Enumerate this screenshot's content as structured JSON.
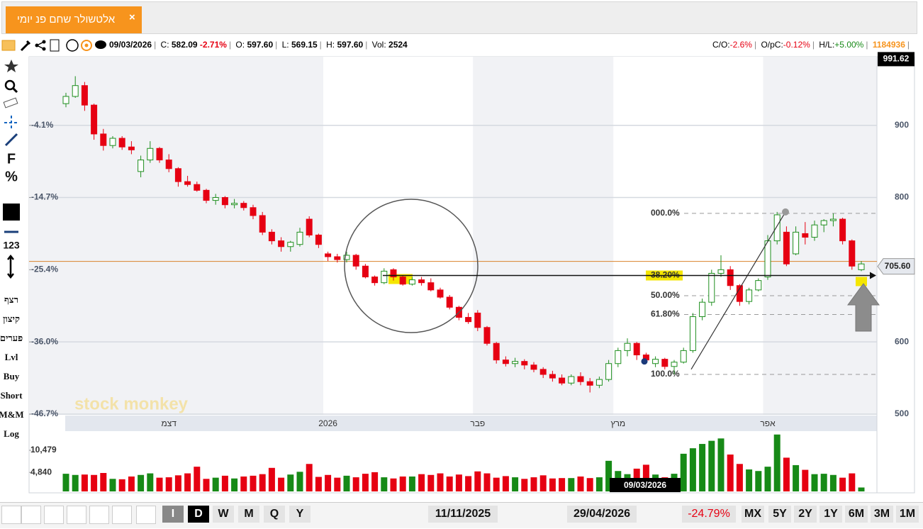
{
  "tab": {
    "title": "אלטשולר שחם פנ יומי",
    "close": "×"
  },
  "toolbar": {
    "date": "09/03/2026",
    "c_label": "C:",
    "c": "582.09",
    "c_change": "-2.71%",
    "o_label": "O:",
    "o": "597.60",
    "l_label": "L:",
    "l": "569.15",
    "h_label": "H:",
    "h": "597.60",
    "vol_label": "Vol:",
    "vol": "2524",
    "co_label": "C/O:",
    "co": "-2.6%",
    "opc_label": "O/pC:",
    "opc": "-0.12%",
    "hl_label": "H/L:",
    "hl": "+5.00%",
    "id": "1184936"
  },
  "left_tools": [
    "F",
    "%",
    "123",
    "רצף",
    "קיצון",
    "פערים",
    "Lvl",
    "Buy",
    "Short",
    "M&M",
    "Log"
  ],
  "bottom_bar": {
    "intervals": [
      "I",
      "D",
      "W",
      "M",
      "Q",
      "Y"
    ],
    "from": "11/11/2025",
    "to": "29/04/2026",
    "change": "-24.79%",
    "ranges": [
      "MX",
      "5Y",
      "2Y",
      "1Y",
      "6M",
      "3M",
      "1M"
    ]
  },
  "chart_data": {
    "type": "candlestick",
    "watermark": "stock monkey",
    "crosshair_date": "09/03/2026",
    "categories": [
      null,
      null,
      null,
      null,
      null,
      null,
      null,
      null,
      null,
      null,
      null,
      "דצמ",
      null,
      null,
      null,
      null,
      null,
      null,
      null,
      null,
      null,
      null,
      null,
      null,
      null,
      null,
      null,
      null,
      "2026",
      null,
      null,
      null,
      null,
      null,
      null,
      null,
      null,
      null,
      null,
      null,
      null,
      null,
      null,
      null,
      "פבר",
      null,
      null,
      null,
      null,
      null,
      null,
      null,
      null,
      null,
      null,
      null,
      null,
      null,
      null,
      "מרץ",
      null,
      null,
      null,
      null,
      null,
      null,
      null,
      null,
      null,
      null,
      null,
      null,
      null,
      null,
      null,
      "אפר",
      null,
      null,
      null,
      null,
      null,
      null,
      null,
      null,
      null,
      null
    ],
    "open": [
      930,
      940,
      955,
      928,
      888,
      872,
      882,
      870,
      836,
      852,
      868,
      852,
      840,
      822,
      818,
      810,
      796,
      800,
      790,
      792,
      786,
      775,
      752,
      740,
      732,
      735,
      770,
      748,
      722,
      718,
      714,
      720,
      705,
      690,
      682,
      700,
      690,
      680,
      686,
      682,
      672,
      662,
      648,
      634,
      640,
      620,
      598,
      575,
      570,
      573,
      568,
      562,
      555,
      550,
      543,
      552,
      545,
      540,
      548,
      570,
      588,
      598,
      582,
      570,
      576,
      566,
      572,
      588,
      635,
      655,
      695,
      700,
      678,
      656,
      672,
      690,
      740,
      752,
      722,
      750,
      745,
      762,
      768,
      770,
      740,
      700
    ],
    "high": [
      945,
      968,
      960,
      930,
      895,
      885,
      885,
      878,
      858,
      878,
      870,
      860,
      842,
      830,
      822,
      812,
      805,
      802,
      798,
      795,
      790,
      780,
      756,
      745,
      740,
      758,
      774,
      750,
      725,
      722,
      725,
      722,
      708,
      692,
      702,
      702,
      692,
      690,
      690,
      688,
      675,
      665,
      650,
      640,
      644,
      622,
      600,
      580,
      578,
      576,
      572,
      565,
      560,
      555,
      555,
      558,
      550,
      552,
      575,
      592,
      605,
      600,
      585,
      580,
      578,
      575,
      592,
      640,
      660,
      700,
      720,
      705,
      680,
      675,
      688,
      748,
      780,
      760,
      760,
      766,
      768,
      770,
      778,
      772,
      742,
      712
    ],
    "low": [
      925,
      938,
      920,
      880,
      865,
      868,
      866,
      860,
      828,
      848,
      848,
      835,
      815,
      815,
      808,
      792,
      790,
      785,
      785,
      782,
      770,
      748,
      735,
      725,
      725,
      732,
      745,
      730,
      712,
      710,
      710,
      700,
      688,
      678,
      680,
      685,
      678,
      678,
      678,
      670,
      660,
      645,
      630,
      625,
      615,
      595,
      570,
      566,
      565,
      562,
      558,
      550,
      545,
      540,
      540,
      540,
      530,
      536,
      545,
      565,
      580,
      575,
      570,
      565,
      562,
      555,
      570,
      585,
      630,
      650,
      690,
      672,
      650,
      652,
      670,
      686,
      735,
      705,
      720,
      735,
      740,
      752,
      760,
      735,
      700,
      698
    ],
    "close": [
      940,
      955,
      928,
      888,
      872,
      882,
      870,
      866,
      852,
      868,
      852,
      840,
      822,
      818,
      810,
      796,
      800,
      790,
      792,
      786,
      775,
      752,
      740,
      732,
      738,
      752,
      748,
      735,
      718,
      714,
      720,
      705,
      690,
      682,
      698,
      690,
      680,
      686,
      682,
      672,
      662,
      648,
      634,
      628,
      620,
      598,
      575,
      570,
      573,
      568,
      562,
      555,
      550,
      543,
      552,
      545,
      540,
      548,
      570,
      588,
      598,
      582,
      575,
      576,
      566,
      572,
      588,
      635,
      655,
      695,
      700,
      678,
      656,
      672,
      685,
      740,
      776,
      708,
      752,
      745,
      762,
      768,
      770,
      740,
      705,
      708
    ],
    "volume": [
      4500,
      4200,
      4300,
      4200,
      4700,
      3200,
      3100,
      3800,
      4200,
      4600,
      3500,
      3600,
      4100,
      4600,
      6300,
      3200,
      3500,
      4000,
      3300,
      3800,
      4000,
      4400,
      6000,
      3500,
      4300,
      5000,
      7000,
      3700,
      4200,
      3500,
      4000,
      3600,
      4500,
      4900,
      3600,
      3300,
      3800,
      3800,
      4400,
      4200,
      4600,
      3800,
      4300,
      3900,
      5100,
      4600,
      3500,
      3900,
      3600,
      3200,
      3600,
      4100,
      3300,
      3400,
      3400,
      3800,
      3400,
      3600,
      7800,
      5200,
      4400,
      5800,
      6800,
      4300,
      3600,
      4500,
      9600,
      11000,
      12100,
      12900,
      13500,
      9400,
      7000,
      5600,
      5200,
      6300,
      14500,
      8600,
      6700,
      5500,
      4400,
      4500,
      4200,
      3500,
      4600,
      1000
    ],
    "up_color": "#1f8f1f",
    "down_color": "#e60012",
    "volume_up_color": "#178a17",
    "ylim": [
      500,
      993
    ],
    "yticks": [
      500,
      600,
      800,
      900
    ],
    "yticks_left": [
      {
        "value": 900,
        "label": "-4.1%"
      },
      {
        "value": 800,
        "label": "-14.7%"
      },
      {
        "value": 700,
        "label": "-25.4%"
      },
      {
        "value": 600,
        "label": "-36.0%"
      },
      {
        "value": 500,
        "label": "-46.7%"
      }
    ],
    "volume_ylim": [
      0,
      15000
    ],
    "volume_yticks": [
      {
        "value": 4840,
        "label": "4,840"
      },
      {
        "value": 10479,
        "label": "10,479"
      }
    ],
    "max_price": {
      "value": 991.62,
      "label": "991.62"
    },
    "last_price": {
      "value": 705.6,
      "label": "705.60"
    },
    "fib": [
      {
        "label": "000.0%",
        "value": 778
      },
      {
        "label": "38.20%",
        "value": 692
      },
      {
        "label": "50.00%",
        "value": 664
      },
      {
        "label": "61.80%",
        "value": 638
      },
      {
        "label": "100.0%",
        "value": 555
      }
    ],
    "grid": true
  }
}
